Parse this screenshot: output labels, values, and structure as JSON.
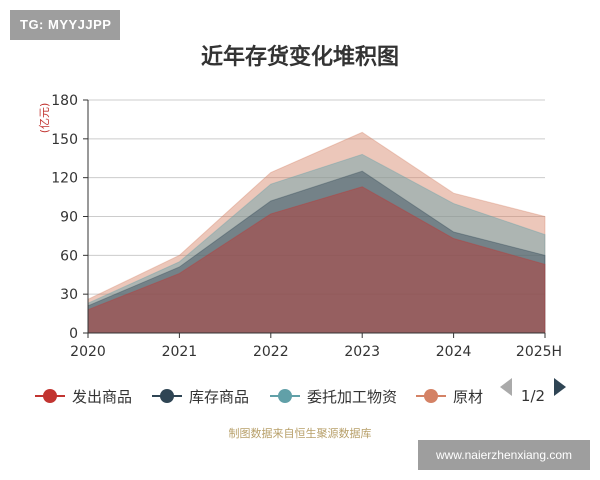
{
  "badge_text": "TG: MYYJJPP",
  "watermark_text": "www.naierzhenxiang.com",
  "chart_data": {
    "type": "area",
    "stacked": true,
    "title": "近年存货变化堆积图",
    "ylabel": "(亿元)",
    "source_note": "制图数据来自恒生聚源数据库",
    "categories": [
      "2020",
      "2021",
      "2022",
      "2023",
      "2024",
      "2025H"
    ],
    "ylim": [
      0,
      180
    ],
    "yticks": [
      0,
      30,
      60,
      90,
      120,
      150,
      180
    ],
    "grid": true,
    "legend_placement": "bottom",
    "series": [
      {
        "name": "发出商品",
        "color": "#c23531",
        "values": [
          18,
          46,
          92,
          113,
          73,
          53
        ]
      },
      {
        "name": "库存商品",
        "color": "#2f4554",
        "values": [
          3,
          5,
          10,
          12,
          5,
          7
        ]
      },
      {
        "name": "委托加工物资",
        "color": "#61a0a8",
        "values": [
          2,
          4,
          13,
          13,
          22,
          16
        ]
      },
      {
        "name": "原材料",
        "color": "#d48265",
        "values": [
          3,
          5,
          9,
          17,
          8,
          14
        ]
      }
    ],
    "legend": {
      "visible_items": [
        "发出商品",
        "库存商品",
        "委托加工物资",
        "原材"
      ],
      "page_indicator": "1/2"
    }
  }
}
